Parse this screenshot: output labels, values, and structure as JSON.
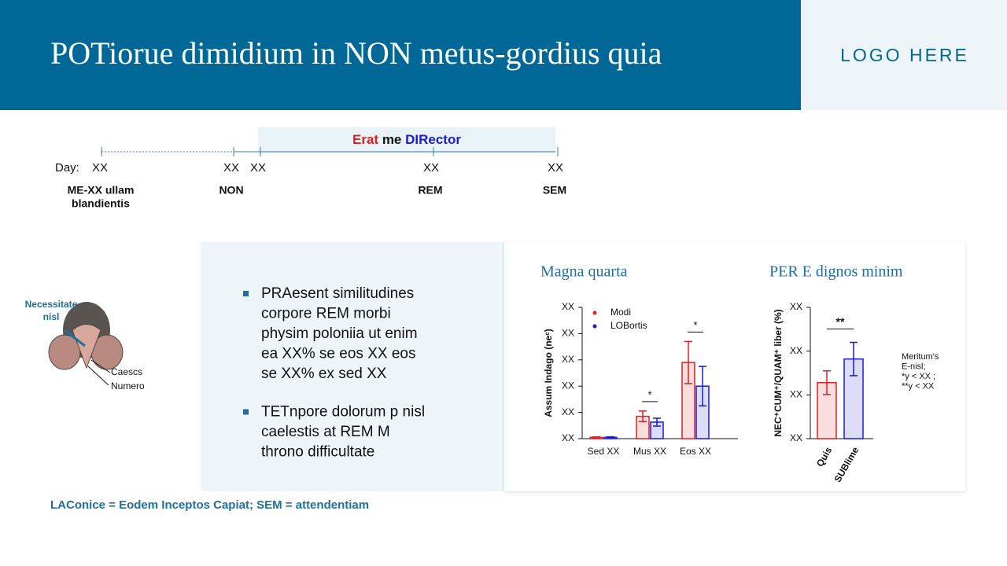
{
  "header": {
    "title": "POTiorue dimidium in NON metus-gordius quia",
    "logo": "LOGO HERE"
  },
  "timeline": {
    "banner": [
      "Erat",
      " me ",
      "DIRector"
    ],
    "day_label": "Day:",
    "ticks": [
      "XX",
      "XX",
      "XX",
      "XX",
      "XX"
    ],
    "labels": [
      [
        "ME-XX ullam",
        "blandientis"
      ],
      [
        "NON"
      ],
      [
        "REM"
      ],
      [
        "SEM"
      ]
    ]
  },
  "mouse": {
    "label": [
      "Necessitate",
      "nisl"
    ],
    "parts": [
      "Caescs",
      "Numero"
    ]
  },
  "bullets": [
    [
      "PRAesent similitudines",
      "corpore REM morbi",
      "physim poloniia ut enim",
      "ea XX% se eos XX eos",
      "se XX% ex sed XX"
    ],
    [
      "TETnpore dolorum p nisl",
      "caelestis at REM M",
      "throno difficultate"
    ]
  ],
  "footnote": "LAConice = Eodem Inceptos Capiat; SEM = attendentiam",
  "chart_data": [
    {
      "type": "bar",
      "title": "Magna quarta",
      "y_label": "Assum Indago (neᶜ)",
      "categories": [
        "Sed XX",
        "Mus XX",
        "Eos XX"
      ],
      "series": [
        {
          "name": "Modi",
          "color": "#e02020",
          "values": [
            0.05,
            0.85,
            2.9
          ],
          "errors": [
            0.02,
            0.2,
            0.8
          ]
        },
        {
          "name": "LOBortis",
          "color": "#1a1adc",
          "values": [
            0.05,
            0.63,
            2.0
          ],
          "errors": [
            0.02,
            0.15,
            0.75
          ]
        }
      ],
      "annotations": [
        "*",
        "*"
      ],
      "ylim": [
        0,
        5
      ],
      "yticks": [
        {
          "value": 0,
          "label": "XX"
        },
        {
          "value": 1,
          "label": "XX"
        },
        {
          "value": 2,
          "label": "XX"
        },
        {
          "value": 3,
          "label": "XX"
        },
        {
          "value": 4,
          "label": "XX"
        },
        {
          "value": 5,
          "label": "XX"
        }
      ]
    },
    {
      "type": "bar",
      "title": "PER E dignos minim",
      "y_label": "NEC⁺CUM⁺/QUAM⁺ liber (%)",
      "categories": [
        "Quis",
        "SUBlime"
      ],
      "values": [
        1.28,
        1.82
      ],
      "errors": [
        0.27,
        0.38
      ],
      "colors": [
        "#e02020",
        "#1a1adc"
      ],
      "annotations": [
        "**"
      ],
      "note": [
        "Meritum's",
        "E-nisl;",
        "*y < XX ;",
        "**y < XX"
      ],
      "ylim": [
        0,
        3
      ],
      "yticks": [
        {
          "value": 0,
          "label": "XX"
        },
        {
          "value": 1,
          "label": "XX"
        },
        {
          "value": 2,
          "label": "XX"
        },
        {
          "value": 3,
          "label": "XX"
        }
      ]
    }
  ]
}
